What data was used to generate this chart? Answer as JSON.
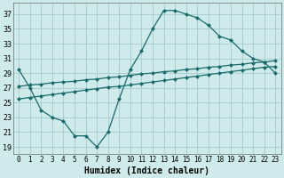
{
  "xlabel": "Humidex (Indice chaleur)",
  "background_color": "#ceeaea",
  "grid_color": "#aacece",
  "line_color": "#1a6b6b",
  "xlim": [
    -0.5,
    23.5
  ],
  "ylim": [
    18,
    38.5
  ],
  "yticks": [
    19,
    21,
    23,
    25,
    27,
    29,
    31,
    33,
    35,
    37
  ],
  "xticks": [
    0,
    1,
    2,
    3,
    4,
    5,
    6,
    7,
    8,
    9,
    10,
    11,
    12,
    13,
    14,
    15,
    16,
    17,
    18,
    19,
    20,
    21,
    22,
    23
  ],
  "curve1_x": [
    0,
    1,
    2,
    3,
    4,
    5,
    6,
    7,
    8,
    9,
    10,
    11,
    12,
    13,
    14,
    15,
    16,
    17,
    18,
    19,
    20,
    21,
    22,
    23
  ],
  "curve1_y": [
    29.5,
    27.0,
    24.0,
    23.0,
    22.5,
    20.5,
    20.5,
    19.0,
    21.0,
    25.5,
    29.5,
    32.0,
    35.0,
    37.5,
    37.5,
    37.0,
    36.5,
    35.5,
    34.0,
    33.5,
    32.0,
    31.0,
    30.5,
    29.0
  ],
  "curve2_x": [
    0,
    1,
    2,
    3,
    4,
    5,
    6,
    7,
    8,
    9,
    10,
    11,
    12,
    13,
    14,
    15,
    16,
    17,
    18,
    19,
    20,
    21,
    22,
    23
  ],
  "curve2_y": [
    27.2,
    27.4,
    27.5,
    27.7,
    27.8,
    27.9,
    28.1,
    28.2,
    28.4,
    28.5,
    28.7,
    28.9,
    29.0,
    29.2,
    29.3,
    29.5,
    29.6,
    29.8,
    29.9,
    30.1,
    30.2,
    30.4,
    30.5,
    30.7
  ],
  "curve3_x": [
    0,
    1,
    2,
    3,
    4,
    5,
    6,
    7,
    8,
    9,
    10,
    11,
    12,
    13,
    14,
    15,
    16,
    17,
    18,
    19,
    20,
    21,
    22,
    23
  ],
  "curve3_y": [
    25.5,
    25.7,
    25.9,
    26.1,
    26.3,
    26.5,
    26.7,
    26.9,
    27.1,
    27.2,
    27.4,
    27.6,
    27.8,
    28.0,
    28.2,
    28.4,
    28.6,
    28.8,
    29.0,
    29.2,
    29.4,
    29.6,
    29.8,
    29.9
  ]
}
